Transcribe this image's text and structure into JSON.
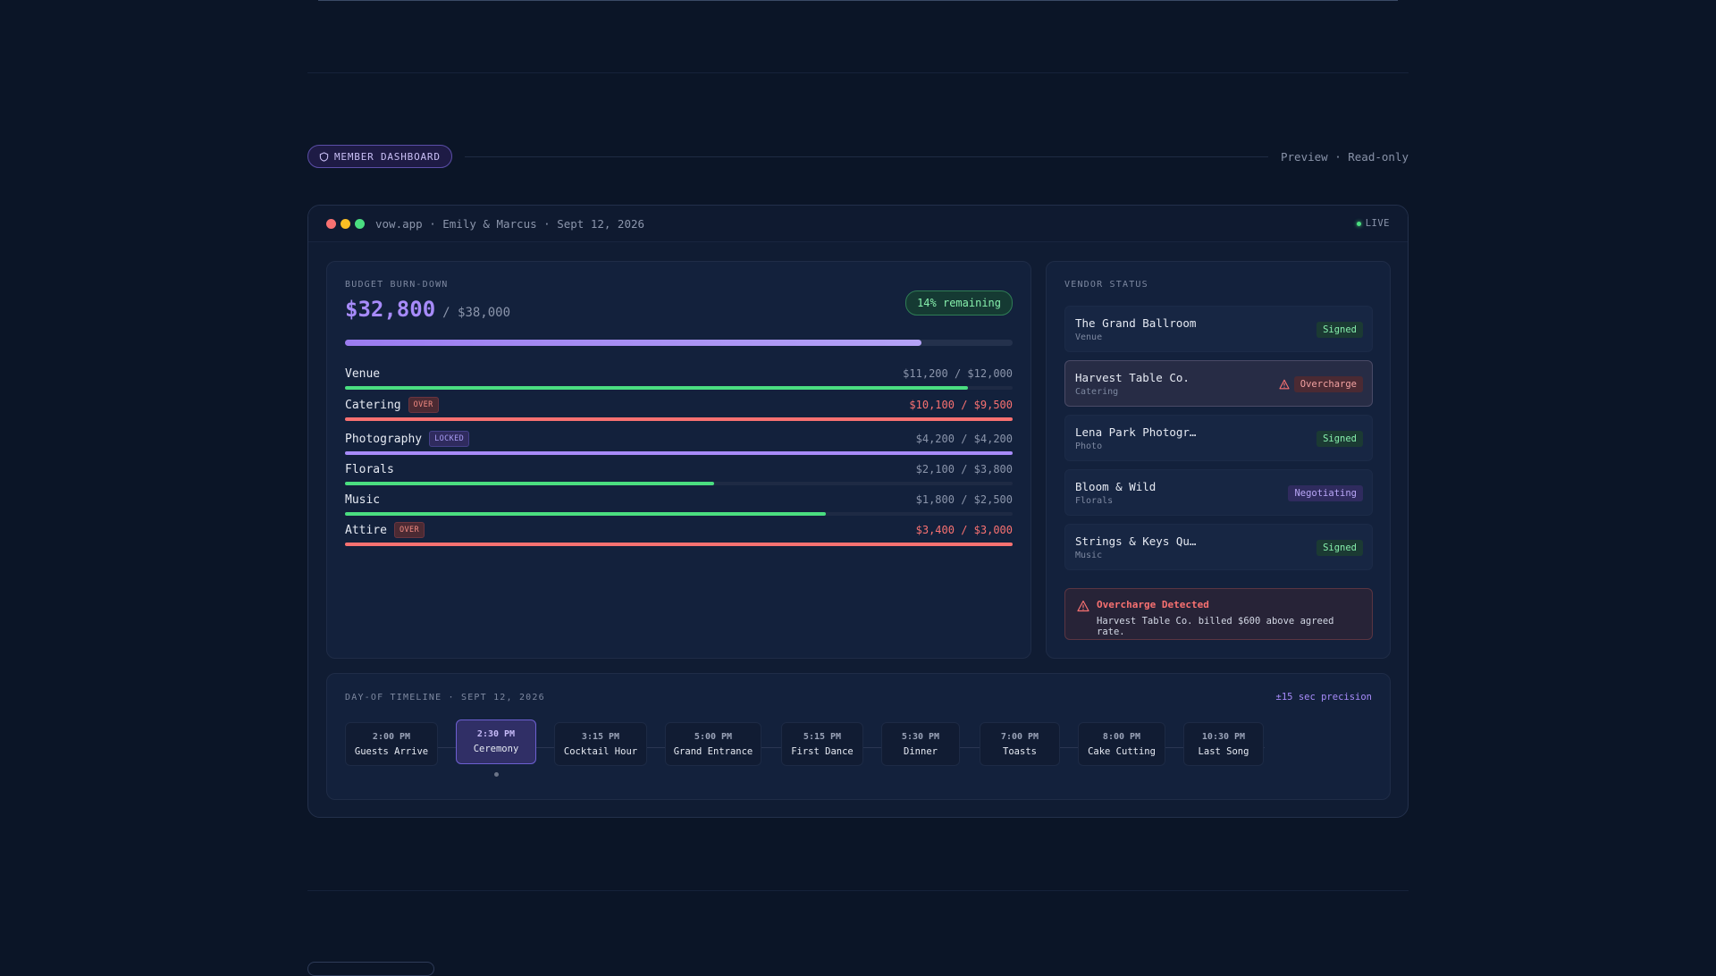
{
  "section": {
    "pill_label": "MEMBER DASHBOARD",
    "mode": "Preview · Read-only"
  },
  "window": {
    "title": "vow.app · Emily & Marcus · Sept 12, 2026",
    "live_label": "LIVE",
    "dot_colors": [
      "#f87171",
      "#fbbf24",
      "#4ade80"
    ]
  },
  "budget": {
    "label": "BUDGET BURN-DOWN",
    "spent": "$32,800",
    "total": "/ $38,000",
    "remaining": "14% remaining",
    "spent_fraction": 0.863,
    "categories": [
      {
        "name": "Venue",
        "amount": "$11,200 / $12,000",
        "badge": "",
        "fraction": 0.933,
        "color": "#4ade80",
        "over": false
      },
      {
        "name": "Catering",
        "amount": "$10,100 / $9,500",
        "badge": "OVER",
        "badge_type": "over",
        "fraction": 1.0,
        "color": "#f87171",
        "over": true
      },
      {
        "name": "Photography",
        "amount": "$4,200 / $4,200",
        "badge": "LOCKED",
        "badge_type": "locked",
        "fraction": 1.0,
        "color": "#a78bfa",
        "over": false
      },
      {
        "name": "Florals",
        "amount": "$2,100 / $3,800",
        "badge": "",
        "fraction": 0.553,
        "color": "#4ade80",
        "over": false
      },
      {
        "name": "Music",
        "amount": "$1,800 / $2,500",
        "badge": "",
        "fraction": 0.72,
        "color": "#4ade80",
        "over": false
      },
      {
        "name": "Attire",
        "amount": "$3,400 / $3,000",
        "badge": "OVER",
        "badge_type": "over",
        "fraction": 1.0,
        "color": "#f87171",
        "over": true
      }
    ]
  },
  "vendors": {
    "label": "VENDOR STATUS",
    "items": [
      {
        "name": "The Grand Ballroom",
        "type": "Venue",
        "status": "Signed",
        "status_type": "signed"
      },
      {
        "name": "Harvest Table Co.",
        "type": "Catering",
        "status": "Overcharge",
        "status_type": "overcharge"
      },
      {
        "name": "Lena Park Photogr…",
        "type": "Photo",
        "status": "Signed",
        "status_type": "signed"
      },
      {
        "name": "Bloom & Wild",
        "type": "Florals",
        "status": "Negotiating",
        "status_type": "negotiating"
      },
      {
        "name": "Strings & Keys Qu…",
        "type": "Music",
        "status": "Signed",
        "status_type": "signed"
      }
    ],
    "alert": {
      "title": "Overcharge Detected",
      "text": "Harvest Table Co. billed $600 above agreed rate."
    }
  },
  "timeline": {
    "label": "DAY-OF TIMELINE · SEPT 12, 2026",
    "precision": "±15 sec precision",
    "events": [
      {
        "time": "2:00 PM",
        "label": "Guests Arrive"
      },
      {
        "time": "2:30 PM",
        "label": "Ceremony",
        "active": true
      },
      {
        "time": "3:15 PM",
        "label": "Cocktail Hour"
      },
      {
        "time": "5:00 PM",
        "label": "Grand Entrance"
      },
      {
        "time": "5:15 PM",
        "label": "First Dance"
      },
      {
        "time": "5:30 PM",
        "label": "Dinner"
      },
      {
        "time": "7:00 PM",
        "label": "Toasts"
      },
      {
        "time": "8:00 PM",
        "label": "Cake Cutting"
      },
      {
        "time": "10:30 PM",
        "label": "Last Song"
      }
    ]
  }
}
